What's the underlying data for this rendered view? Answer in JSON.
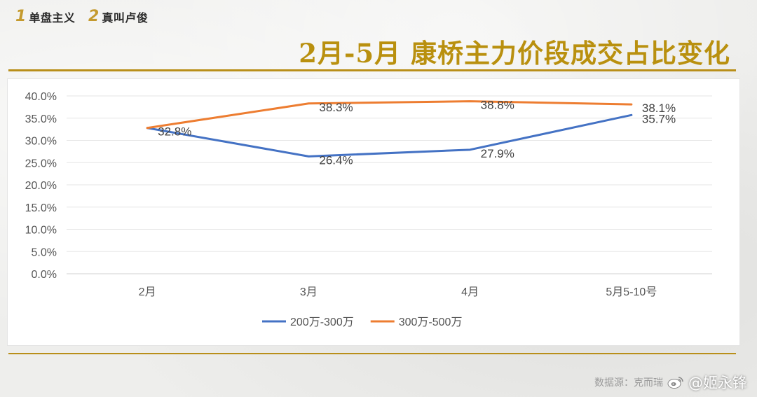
{
  "header": {
    "brand1_num": "1",
    "brand1_text": "单盘主义",
    "brand2_num": "2",
    "brand2_text": "真叫卢俊",
    "title": "2月-5月 康桥主力价段成交占比变化"
  },
  "footer": {
    "source_text": "数据源：克而瑞",
    "watermark_handle": "@姬永锋",
    "watermark_icon": "weibo-icon"
  },
  "colors": {
    "accent_gold": "#b9900f",
    "series_blue": "#4472c4",
    "series_orange": "#ed7d31"
  },
  "chart_data": {
    "type": "line",
    "title": "",
    "xlabel": "",
    "ylabel": "",
    "categories": [
      "2月",
      "3月",
      "4月",
      "5月5-10号"
    ],
    "ylim": [
      0,
      40
    ],
    "yticks": [
      "0.0%",
      "5.0%",
      "10.0%",
      "15.0%",
      "20.0%",
      "25.0%",
      "30.0%",
      "35.0%",
      "40.0%"
    ],
    "grid": true,
    "legend_position": "bottom",
    "series": [
      {
        "name": "200万-300万",
        "color": "#4472c4",
        "values": [
          32.8,
          26.4,
          27.9,
          35.7
        ],
        "labels": [
          "",
          "26.4%",
          "27.9%",
          "35.7%"
        ]
      },
      {
        "name": "300万-500万",
        "color": "#ed7d31",
        "values": [
          32.8,
          38.3,
          38.8,
          38.1
        ],
        "labels": [
          "32.8%",
          "38.3%",
          "38.8%",
          "38.1%"
        ]
      }
    ]
  }
}
